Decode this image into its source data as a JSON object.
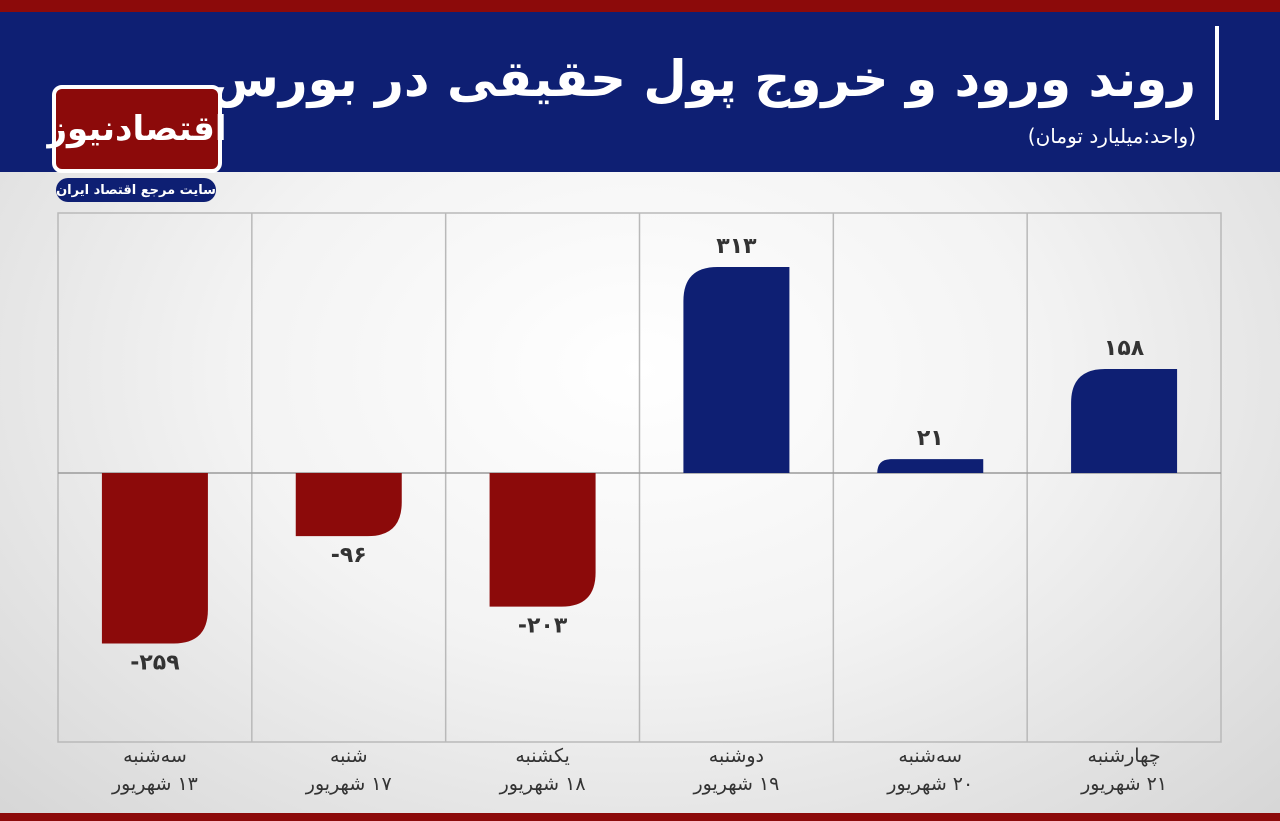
{
  "header": {
    "title": "روند ورود و خروج پول حقیقی در بورس",
    "unit": "(واحد:میلیارد تومان)"
  },
  "logo": {
    "name": "اقتصادنیوز",
    "tagline": "سایت مرجع اقتصاد ایران"
  },
  "colors": {
    "positive": "#0e1f73",
    "negative": "#8c0a0a",
    "header": "#0e1f73",
    "stripe": "#8c0a0a"
  },
  "chart_data": {
    "type": "bar",
    "title": "روند ورود و خروج پول حقیقی در بورس",
    "ylabel": "",
    "xlabel": "",
    "ylim": [
      -350,
      350
    ],
    "grid": true,
    "legend": "none",
    "categories": [
      {
        "day": "سه‌شنبه",
        "date": "۱۳ شهریور"
      },
      {
        "day": "شنبه",
        "date": "۱۷ شهریور"
      },
      {
        "day": "یکشنبه",
        "date": "۱۸ شهریور"
      },
      {
        "day": "دوشنبه",
        "date": "۱۹ شهریور"
      },
      {
        "day": "سه‌شنبه",
        "date": "۲۰ شهریور"
      },
      {
        "day": "چهارشنبه",
        "date": "۲۱ شهریور"
      }
    ],
    "values": [
      -259,
      -96,
      -203,
      313,
      21,
      158
    ],
    "value_labels": [
      "-۲۵۹",
      "-۹۶",
      "-۲۰۳",
      "۳۱۳",
      "۲۱",
      "۱۵۸"
    ]
  }
}
